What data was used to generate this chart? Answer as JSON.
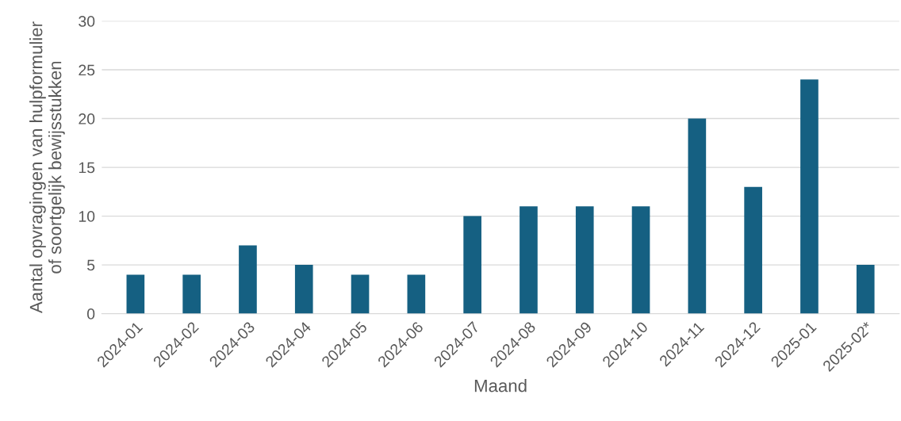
{
  "chart_data": {
    "type": "bar",
    "xlabel": "Maand",
    "ylabel": "Aantal opvragingen van hulpformulier\nof soortgelijk bewijsstukken",
    "categories": [
      "2024-01",
      "2024-02",
      "2024-03",
      "2024-04",
      "2024-05",
      "2024-06",
      "2024-07",
      "2024-08",
      "2024-09",
      "2024-10",
      "2024-11",
      "2024-12",
      "2025-01",
      "2025-02*"
    ],
    "values": [
      4,
      4,
      7,
      5,
      4,
      4,
      10,
      11,
      11,
      11,
      20,
      13,
      24,
      5
    ],
    "color": "#156082",
    "ylim": [
      0,
      30
    ],
    "yticks": [
      0,
      5,
      10,
      15,
      20,
      25,
      30
    ],
    "grid": "y",
    "legend": false
  }
}
